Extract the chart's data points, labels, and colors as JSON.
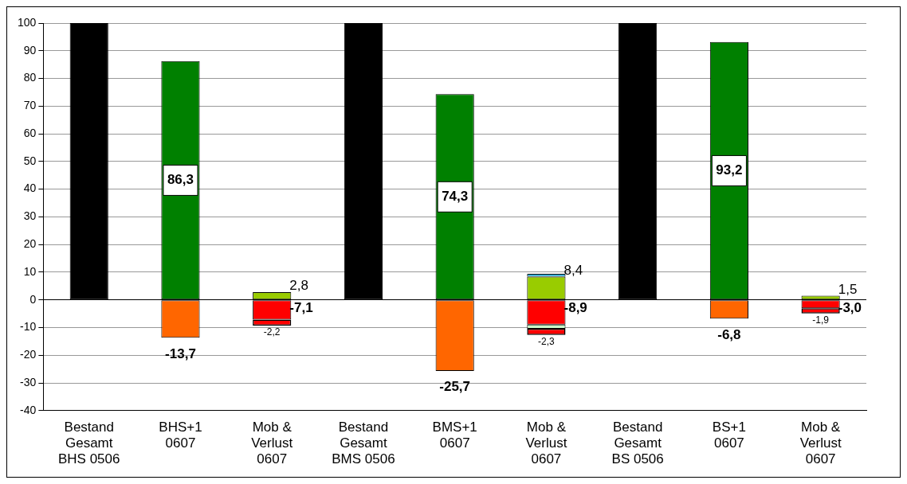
{
  "chart_data": {
    "type": "bar",
    "stacked": true,
    "categories": [
      "Bestand\nGesamt\nBHS 0506",
      "BHS+1\n0607",
      "Mob &\nVerlust\n0607",
      "Bestand\nGesamt\nBMS 0506",
      "BMS+1\n0607",
      "Mob &\nVerlust\n0607",
      "Bestand\nGesamt\nBS 0506",
      "BS+1\n0607",
      "Mob &\nVerlust\n0607"
    ],
    "series": [
      {
        "color": "#000000",
        "values": [
          100,
          null,
          null,
          100,
          null,
          null,
          100,
          null,
          null
        ]
      },
      {
        "color": "#008000",
        "values": [
          null,
          86.3,
          null,
          null,
          74.3,
          null,
          null,
          93.2,
          null
        ],
        "value_labels": [
          null,
          "86,3",
          null,
          null,
          "74,3",
          null,
          null,
          "93,2",
          null
        ]
      },
      {
        "color": "#ff6600",
        "values": [
          null,
          -13.7,
          null,
          null,
          -25.7,
          null,
          null,
          -6.8,
          null
        ],
        "value_labels": [
          null,
          "-13,7",
          null,
          null,
          "-25,7",
          null,
          null,
          "-6,8",
          null
        ]
      },
      {
        "color": "#99cc00",
        "values": [
          null,
          null,
          2.8,
          null,
          null,
          8.4,
          null,
          null,
          1.5
        ],
        "value_labels": [
          null,
          null,
          "2,8",
          null,
          null,
          "8,4",
          null,
          null,
          "1,5"
        ]
      },
      {
        "color": "#33ccff",
        "values": [
          null,
          null,
          null,
          null,
          null,
          1.0,
          null,
          null,
          null
        ]
      },
      {
        "color": "#ff0000",
        "values": [
          null,
          null,
          -7.1,
          null,
          null,
          -8.9,
          null,
          null,
          -3.0
        ],
        "value_labels": [
          null,
          null,
          "-7,1",
          null,
          null,
          "-8,9",
          null,
          null,
          "-3,0"
        ]
      },
      {
        "color": "#ccffcc",
        "values": [
          null,
          null,
          null,
          null,
          null,
          -1.5,
          null,
          null,
          null
        ]
      },
      {
        "color": "#ff0000",
        "values": [
          null,
          null,
          -2.2,
          null,
          null,
          -2.3,
          null,
          null,
          -1.9
        ],
        "value_labels": [
          null,
          null,
          "-2,2",
          null,
          null,
          "-2,3",
          null,
          null,
          "-1,9"
        ]
      }
    ],
    "ylim": [
      -40,
      100
    ],
    "yticks": [
      -40,
      -30,
      -20,
      -10,
      0,
      10,
      20,
      30,
      40,
      50,
      60,
      70,
      80,
      90,
      100
    ],
    "grid": "y",
    "legend": false
  }
}
